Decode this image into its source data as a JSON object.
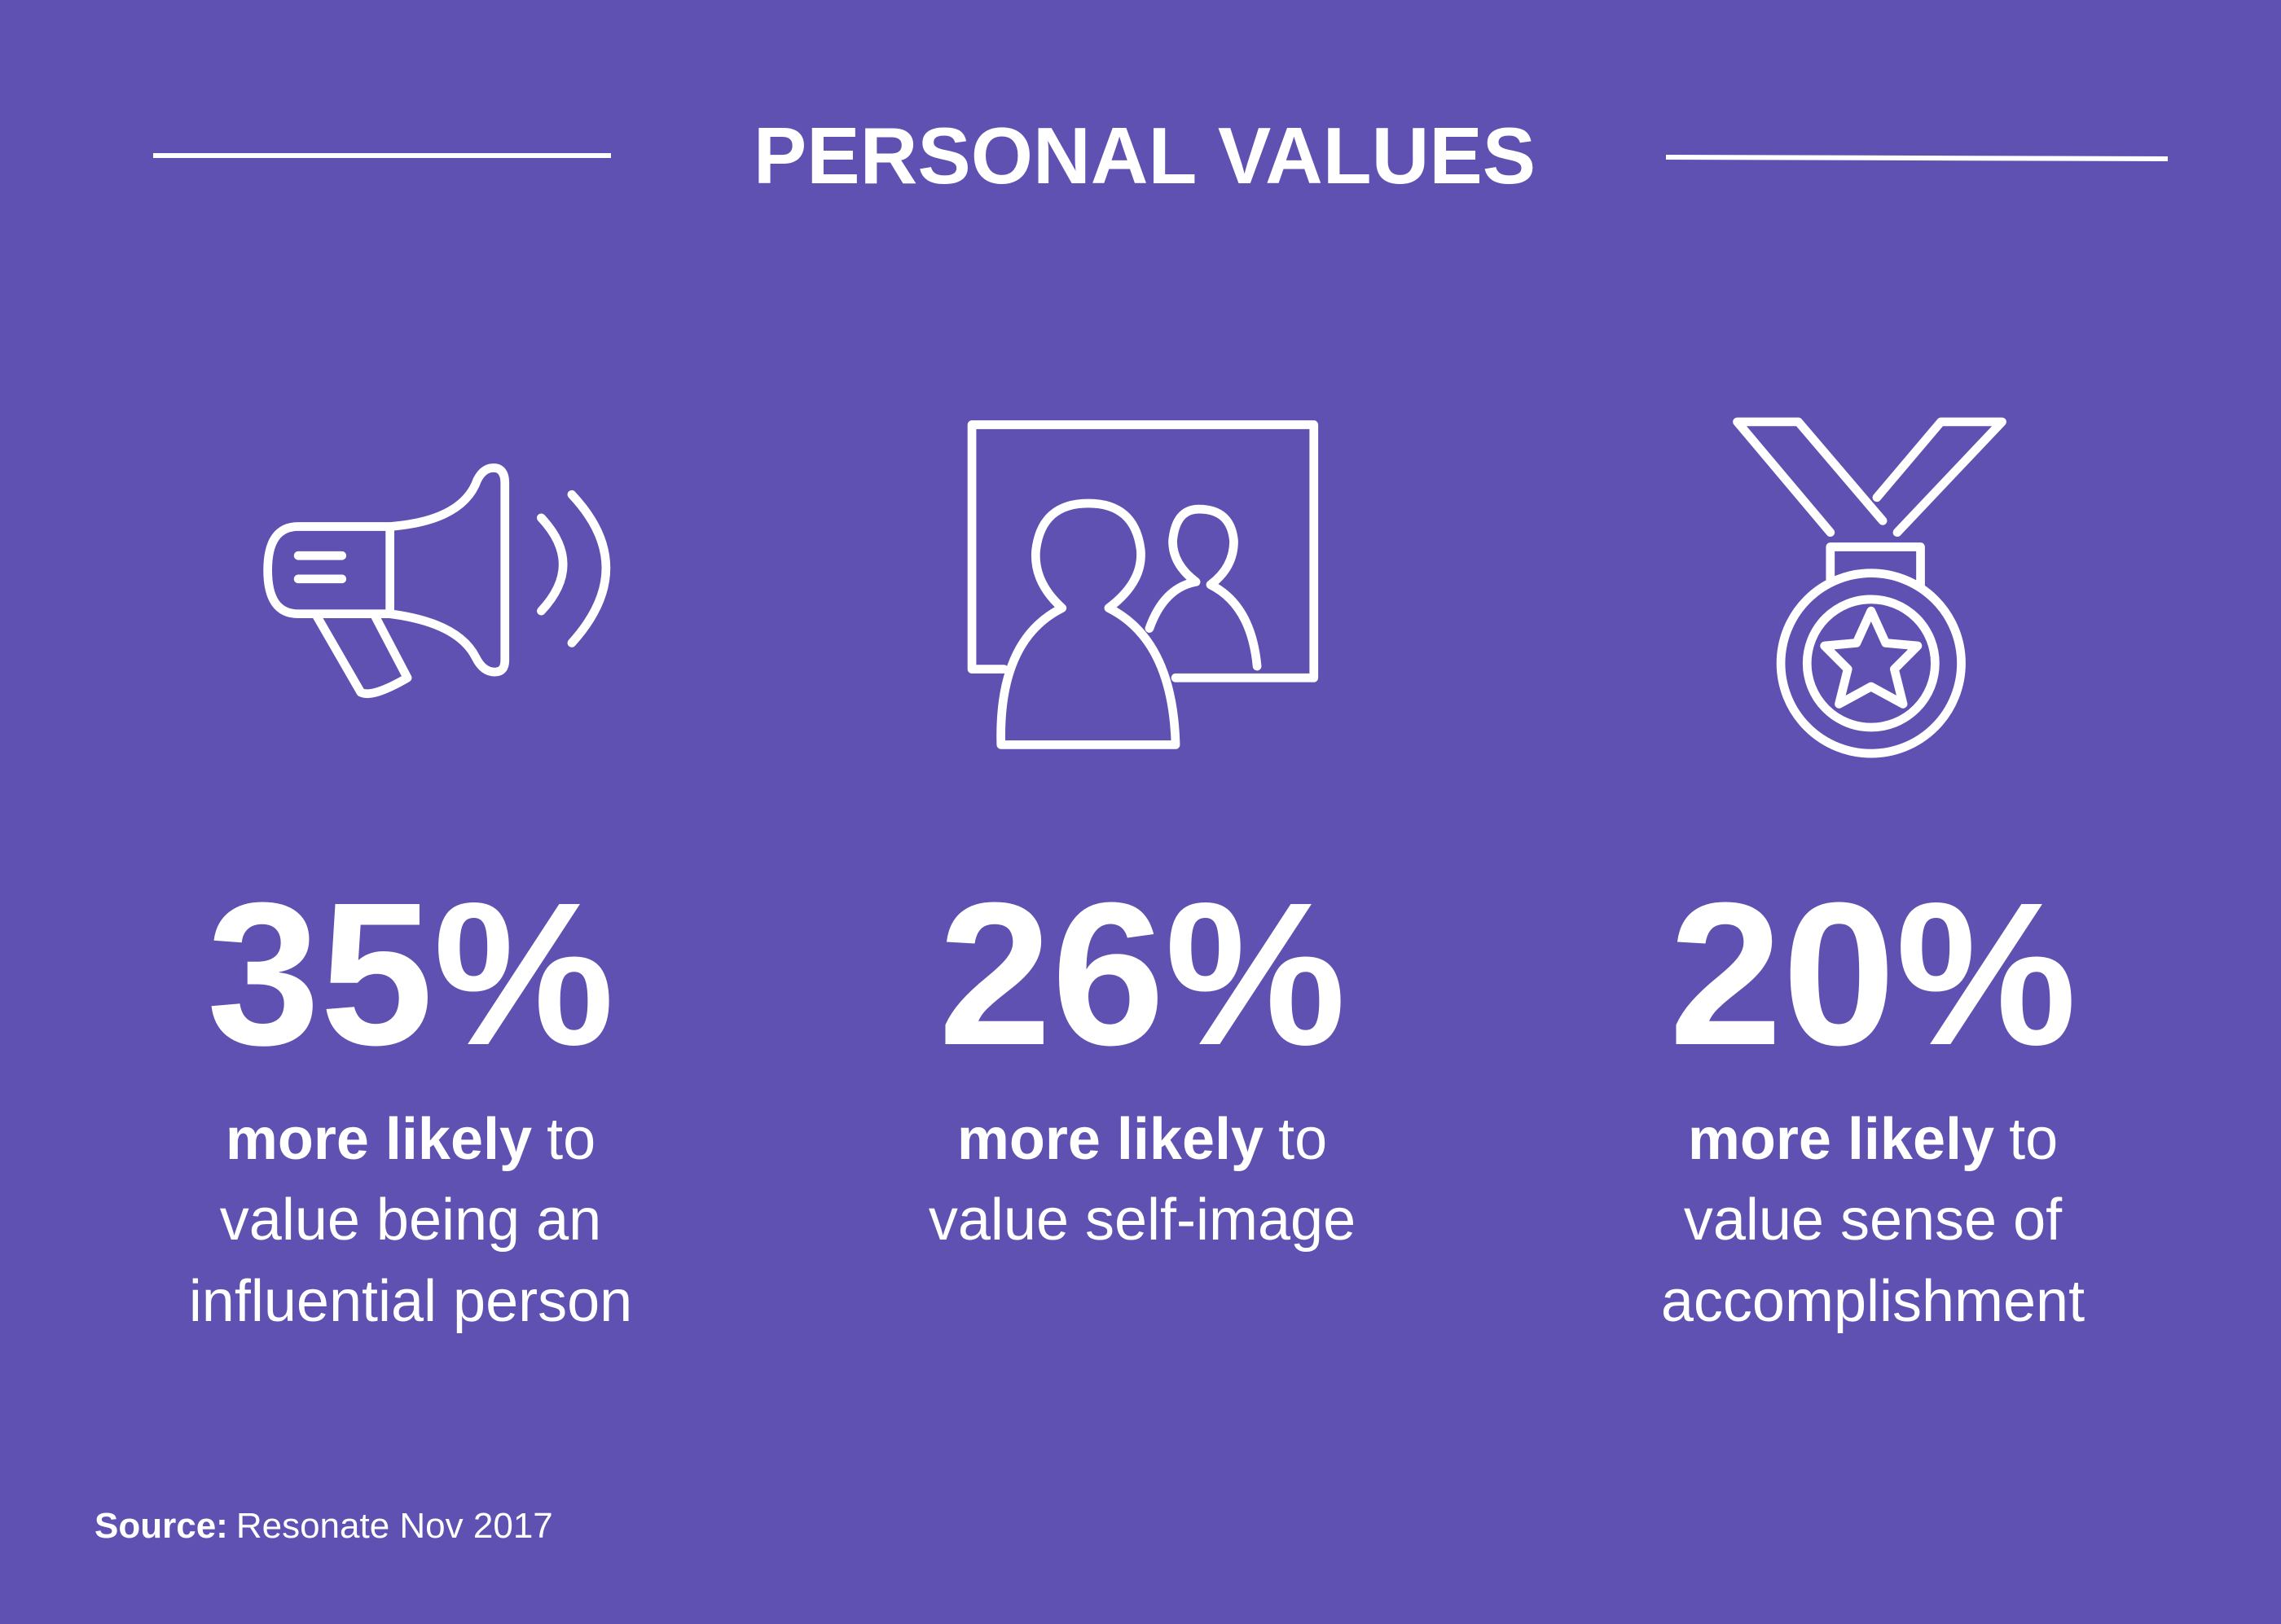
{
  "header": {
    "title": "PERSONAL VALUES"
  },
  "items": [
    {
      "stat": "35%",
      "emphasis": "more likely",
      "rest": "to",
      "lines": [
        "value being an",
        "influential person"
      ]
    },
    {
      "stat": "26%",
      "emphasis": "more likely",
      "rest": "to",
      "lines": [
        "value self-image"
      ]
    },
    {
      "stat": "20%",
      "emphasis": "more likely",
      "rest": "to",
      "lines": [
        "value sense of",
        "accomplishment"
      ]
    }
  ],
  "footer": {
    "source_label": "Source:",
    "source": "Resonate Nov 2017"
  }
}
